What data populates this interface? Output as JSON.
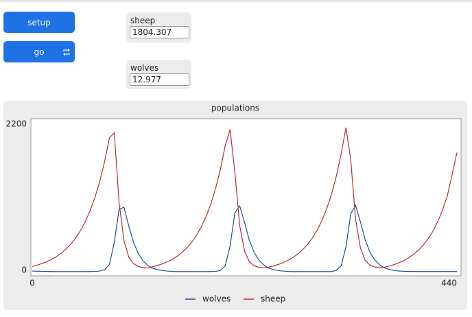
{
  "buttons": [
    {
      "label": "setup"
    },
    {
      "label": "go"
    }
  ],
  "monitors": [
    {
      "label": "sheep",
      "value": "1804.307"
    },
    {
      "label": "wolves",
      "value": "12.977"
    }
  ],
  "chart_data": {
    "type": "line",
    "title": "populations",
    "x": [
      0,
      5,
      10,
      15,
      20,
      25,
      30,
      35,
      40,
      45,
      50,
      55,
      60,
      65,
      70,
      75,
      80,
      85,
      90,
      95,
      100,
      105,
      110,
      115,
      120,
      125,
      130,
      135,
      140,
      145,
      150,
      155,
      160,
      165,
      170,
      175,
      180,
      185,
      190,
      195,
      200,
      205,
      210,
      215,
      220,
      225,
      230,
      235,
      240,
      245,
      250,
      255,
      260,
      265,
      270,
      275,
      280,
      285,
      290,
      295,
      300,
      305,
      310,
      315,
      320,
      325,
      330,
      335,
      340,
      345,
      350,
      355,
      360,
      365,
      370,
      375,
      380,
      385,
      390,
      395,
      400,
      405,
      410,
      415,
      420,
      425,
      430,
      435,
      440
    ],
    "series": [
      {
        "name": "wolves",
        "color": "#1f4e9c",
        "values": [
          20,
          18,
          16,
          14,
          13,
          12,
          12,
          12,
          12,
          12,
          12,
          12,
          13,
          15,
          20,
          40,
          120,
          450,
          950,
          980,
          700,
          450,
          280,
          170,
          100,
          60,
          40,
          28,
          20,
          15,
          12,
          12,
          12,
          12,
          12,
          12,
          12,
          13,
          15,
          30,
          100,
          400,
          900,
          1000,
          750,
          480,
          300,
          180,
          110,
          65,
          42,
          28,
          20,
          15,
          12,
          12,
          12,
          12,
          12,
          12,
          12,
          12,
          13,
          30,
          100,
          380,
          880,
          1010,
          760,
          490,
          300,
          185,
          112,
          68,
          43,
          29,
          21,
          16,
          14,
          13,
          13,
          13,
          13,
          13,
          13,
          13,
          13,
          13,
          13
        ]
      },
      {
        "name": "sheep",
        "color": "#c0272d",
        "values": [
          90,
          109,
          133,
          161,
          196,
          238,
          289,
          351,
          427,
          518,
          630,
          765,
          930,
          1130,
          1373,
          1668,
          2027,
          2100,
          1050,
          480,
          230,
          130,
          90,
          72,
          68,
          86,
          106,
          130,
          160,
          197,
          242,
          298,
          366,
          450,
          553,
          680,
          836,
          1028,
          1264,
          1555,
          1912,
          2150,
          1500,
          700,
          320,
          160,
          100,
          75,
          68,
          80,
          98,
          120,
          148,
          182,
          224,
          276,
          339,
          417,
          513,
          631,
          776,
          955,
          1174,
          1444,
          1776,
          2180,
          1700,
          800,
          370,
          180,
          110,
          80,
          70,
          78,
          96,
          118,
          145,
          178,
          219,
          270,
          332,
          408,
          502,
          617,
          759,
          934,
          1148,
          1470,
          1804
        ]
      }
    ],
    "xlim": [
      0,
      440
    ],
    "ylim": [
      0,
      2200
    ],
    "xticks": [
      0,
      440
    ],
    "yticks": [
      0,
      2200
    ],
    "grid": false
  }
}
